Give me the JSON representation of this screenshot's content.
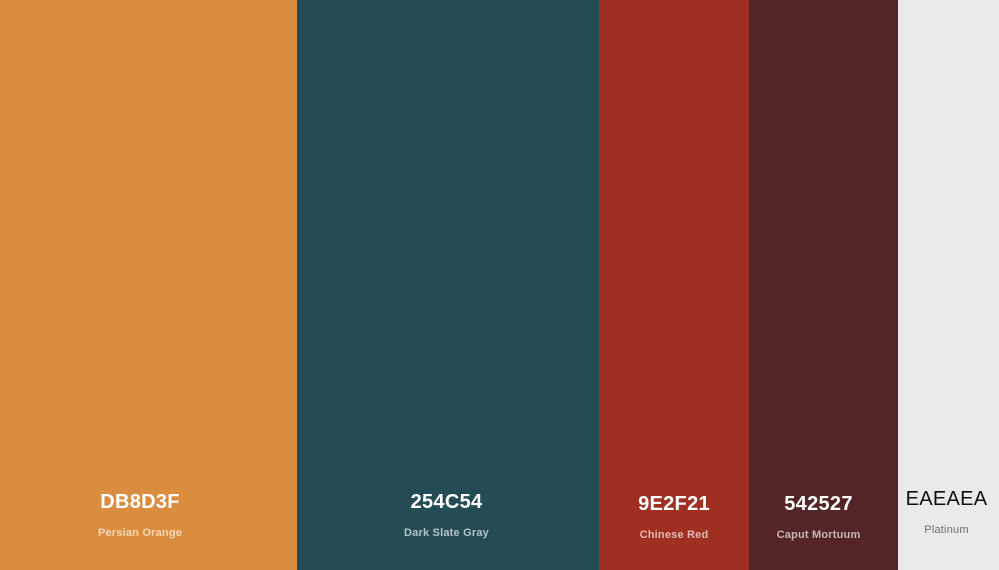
{
  "palette": {
    "colors": [
      {
        "hex_label": "DB8D3F",
        "name": "Persian Orange",
        "color": "#DB8D3F"
      },
      {
        "hex_label": "254C54",
        "name": "Dark Slate Gray",
        "color": "#254C54"
      },
      {
        "hex_label": "9E2F21",
        "name": "Chinese Red",
        "color": "#9E2F21"
      },
      {
        "hex_label": "542527",
        "name": "Caput Mortuum",
        "color": "#542527"
      },
      {
        "hex_label": "EAEAEA",
        "name": "Platinum",
        "color": "#EAEAEA"
      }
    ]
  }
}
